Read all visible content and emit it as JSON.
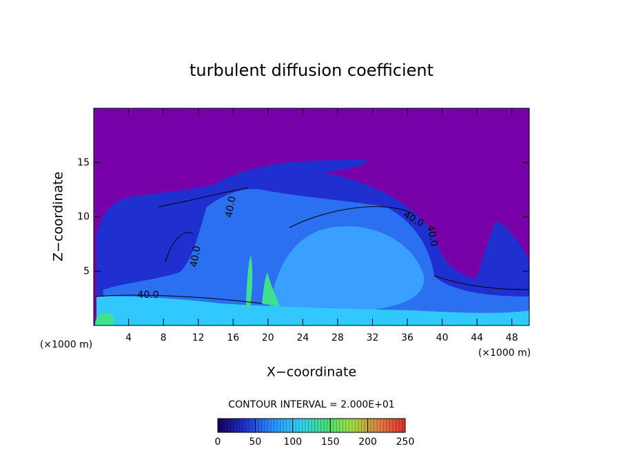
{
  "chart_data": {
    "type": "contour",
    "title": "turbulent diffusion coefficient",
    "xlabel": "X−coordinate",
    "ylabel": "Z−coordinate",
    "x_unit": "(×1000 m)",
    "y_unit": "(×1000 m)",
    "xlim": [
      0,
      50
    ],
    "ylim": [
      0,
      20
    ],
    "xticks": [
      4,
      8,
      12,
      16,
      20,
      24,
      28,
      32,
      36,
      40,
      44,
      48
    ],
    "yticks": [
      5,
      10,
      15
    ],
    "contour_interval": "CONTOUR INTERVAL = 2.000E+01",
    "contour_labels": [
      "40.0",
      "40.0",
      "40.0",
      "40.0",
      "40.0"
    ],
    "colorbar": {
      "lim": [
        0,
        250
      ],
      "ticks": [
        0,
        50,
        100,
        150,
        200,
        250
      ],
      "colors": [
        "#1a0060",
        "#1f2fd0",
        "#2a8cff",
        "#30d0ff",
        "#40e080",
        "#a0e040",
        "#e08040",
        "#e03030"
      ]
    },
    "background_color": "#7800a8"
  }
}
